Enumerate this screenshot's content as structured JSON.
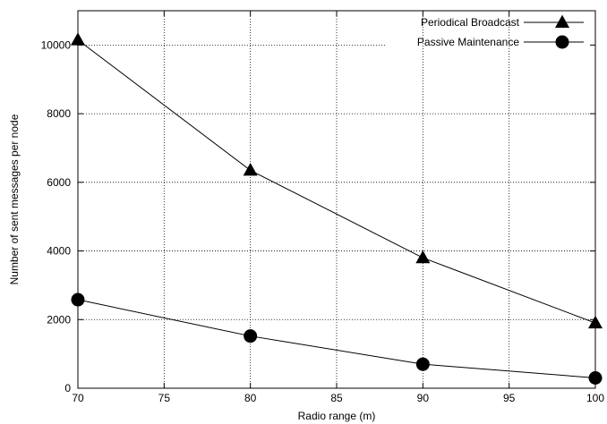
{
  "chart_data": {
    "type": "line",
    "title": "",
    "xlabel": "Radio range (m)",
    "ylabel": "Number of sent messages per node",
    "x": [
      70,
      80,
      90,
      100
    ],
    "xlim": [
      70,
      100
    ],
    "ylim": [
      0,
      11000
    ],
    "xticks": [
      70,
      75,
      80,
      85,
      90,
      95,
      100
    ],
    "yticks": [
      0,
      2000,
      4000,
      6000,
      8000,
      10000
    ],
    "grid": true,
    "legend_position": "top-right",
    "series": [
      {
        "name": "Periodical Broadcast",
        "marker": "triangle",
        "values": [
          10150,
          6350,
          3800,
          1900
        ]
      },
      {
        "name": "Passive Maintenance",
        "marker": "circle",
        "values": [
          2580,
          1520,
          700,
          300
        ]
      }
    ]
  }
}
